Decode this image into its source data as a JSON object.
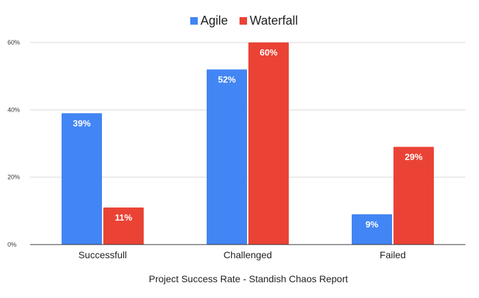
{
  "chart_data": {
    "type": "bar",
    "title": "",
    "xlabel": "Project Success Rate - Standish Chaos Report",
    "ylabel": "",
    "categories": [
      "Successfull",
      "Challenged",
      "Failed"
    ],
    "series": [
      {
        "name": "Agile",
        "color": "#4285f4",
        "values": [
          39,
          52,
          9
        ],
        "labels": [
          "39%",
          "52%",
          "9%"
        ]
      },
      {
        "name": "Waterfall",
        "color": "#ea4335",
        "values": [
          11,
          60,
          29
        ],
        "labels": [
          "11%",
          "60%",
          "29%"
        ]
      }
    ],
    "ylim": [
      0,
      60
    ],
    "yticks": [
      0,
      20,
      40,
      60
    ],
    "ytick_labels": [
      "0%",
      "20%",
      "40%",
      "60%"
    ],
    "grid": true,
    "legend_position": "top-center"
  }
}
